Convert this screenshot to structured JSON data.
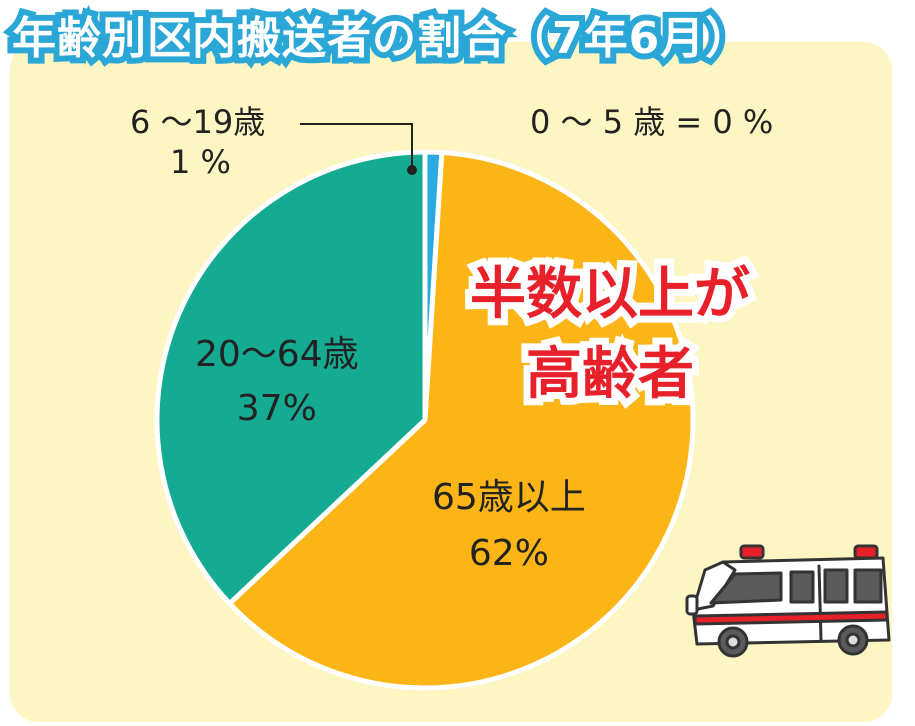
{
  "title": "年齢別区内搬送者の割合（7年6月）",
  "callout": [
    "半数以上が",
    "高齢者"
  ],
  "colors": {
    "title_outline": "#2aa7d6",
    "panel": "#fdf6c3",
    "callout": "#e8202a"
  },
  "chart_data": {
    "type": "pie",
    "title": "年齢別区内搬送者の割合（7年6月）",
    "slices": [
      {
        "label": "0～5歳",
        "value": 0,
        "value_label": "0 ～ 5 歳 = 0 %",
        "color": "#29aae1"
      },
      {
        "label": "6～19歳",
        "value": 1,
        "label_line": "6 ～19歳",
        "value_label": "1 %",
        "color": "#29aae1"
      },
      {
        "label": "65歳以上",
        "value": 62,
        "label_line": "65歳以上",
        "value_label": "62%",
        "color": "#fbb516"
      },
      {
        "label": "20～64歳",
        "value": 37,
        "label_line": "20～64歳",
        "value_label": "37%",
        "color": "#15ab92"
      }
    ]
  },
  "illustration": "ambulance-icon"
}
